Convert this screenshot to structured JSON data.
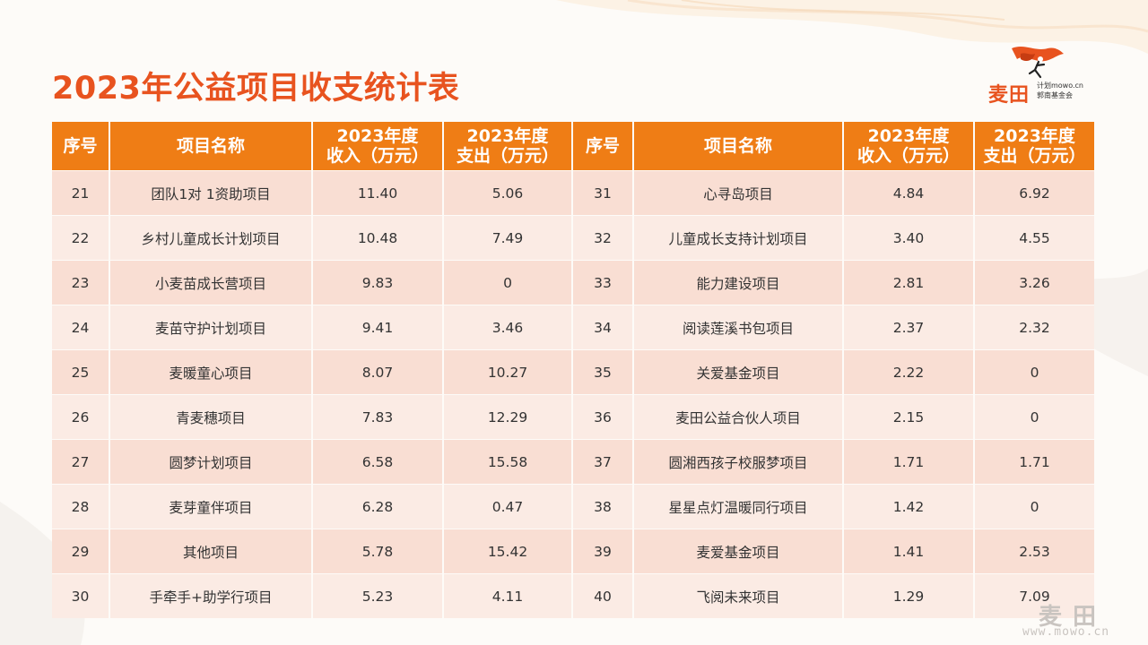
{
  "title": "2023年公益项目收支统计表",
  "logo": {
    "brand": "麦田",
    "sub_line1": "计划mowo.cn",
    "sub_line2": "郭南基金会"
  },
  "watermark": {
    "brand": "麦田",
    "url": "www.mowo.cn"
  },
  "colors": {
    "accent": "#e8531f",
    "header_bg": "#ef7d15",
    "row_odd": "#f9ded3",
    "row_even": "#fbebe4"
  },
  "table": {
    "headers": [
      "序号",
      "项目名称",
      "2023年度\n收入（万元）",
      "2023年度\n支出（万元）",
      "序号",
      "项目名称",
      "2023年度\n收入（万元）",
      "2023年度\n支出（万元）"
    ],
    "header_lines": [
      [
        "序号"
      ],
      [
        "项目名称"
      ],
      [
        "2023年度",
        "收入（万元）"
      ],
      [
        "2023年度",
        "支出（万元）"
      ],
      [
        "序号"
      ],
      [
        "项目名称"
      ],
      [
        "2023年度",
        "收入（万元）"
      ],
      [
        "2023年度",
        "支出（万元）"
      ]
    ],
    "rows": [
      [
        "21",
        "团队1对 1资助项目",
        "11.40",
        "5.06",
        "31",
        "心寻岛项目",
        "4.84",
        "6.92"
      ],
      [
        "22",
        "乡村儿童成长计划项目",
        "10.48",
        "7.49",
        "32",
        "儿童成长支持计划项目",
        "3.40",
        "4.55"
      ],
      [
        "23",
        "小麦苗成长营项目",
        "9.83",
        "0",
        "33",
        "能力建设项目",
        "2.81",
        "3.26"
      ],
      [
        "24",
        "麦苗守护计划项目",
        "9.41",
        "3.46",
        "34",
        "阅读莲溪书包项目",
        "2.37",
        "2.32"
      ],
      [
        "25",
        "麦暖童心项目",
        "8.07",
        "10.27",
        "35",
        "关爱基金项目",
        "2.22",
        "0"
      ],
      [
        "26",
        "青麦穗项目",
        "7.83",
        "12.29",
        "36",
        "麦田公益合伙人项目",
        "2.15",
        "0"
      ],
      [
        "27",
        "圆梦计划项目",
        "6.58",
        "15.58",
        "37",
        "圆湘西孩子校服梦项目",
        "1.71",
        "1.71"
      ],
      [
        "28",
        "麦芽童伴项目",
        "6.28",
        "0.47",
        "38",
        "星星点灯温暖同行项目",
        "1.42",
        "0"
      ],
      [
        "29",
        "其他项目",
        "5.78",
        "15.42",
        "39",
        "麦爱基金项目",
        "1.41",
        "2.53"
      ],
      [
        "30",
        "手牵手+助学行项目",
        "5.23",
        "4.11",
        "40",
        "飞阅未来项目",
        "1.29",
        "7.09"
      ]
    ]
  }
}
